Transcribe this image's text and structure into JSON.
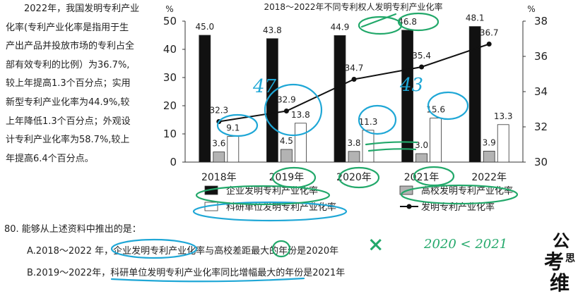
{
  "paragraph": [
    "2022年，我国发明专利产业",
    "化率(专利产业化率是指用于生",
    "产出产品并投放市场的专利占全",
    "部有效专利的比例）为36.7%,",
    "较上年提高1.3个百分点；实用",
    "新型专利产业化率为44.9%,较",
    "上年降低1.3个百分点；外观设",
    "计专利产业化率为58.7%,较上",
    "年提高6.4个百分点。"
  ],
  "question": {
    "stem": "80. 能够从上述资料中推出的是：",
    "options": [
      "A.2018～2022 年，企业发明专利产业化率与高校差距最大的年份是2020年",
      "B.2019～2022年，科研单位发明专利产业化率同比增幅最大的年份是2021年"
    ]
  },
  "annotations": {
    "n47": "47",
    "n43": "43",
    "cross": "×",
    "note": "2020 < 2021"
  },
  "watermark": [
    "公",
    "考",
    "思",
    "维"
  ],
  "colors": {
    "ink": "#22a86a",
    "ink_blue": "#1fa7d6",
    "corp": "#111111",
    "univ": "#b3b3b3",
    "inst": "#ffffff"
  },
  "chart_data": {
    "type": "bar",
    "title": "2018～2022年不同专利权人发明专利产业化率",
    "categories": [
      "2018年",
      "2019年",
      "2020年",
      "2021年",
      "2022年"
    ],
    "left_unit": "%",
    "right_unit": "%",
    "ylim_left": [
      0,
      50
    ],
    "yticks_left": [
      "0",
      "10",
      "20",
      "30",
      "40",
      "50"
    ],
    "ylim_right": [
      30,
      38
    ],
    "yticks_right": [
      "30",
      "32",
      "34",
      "36",
      "38"
    ],
    "series": [
      {
        "name": "企业发明专利产业化率",
        "axis": "left",
        "values": [
          45.0,
          43.8,
          44.9,
          46.8,
          48.1
        ],
        "labels": [
          "45.0",
          "43.8",
          "44.9",
          "46.8",
          "48.1"
        ]
      },
      {
        "name": "高校发明专利产业化率",
        "axis": "left",
        "values": [
          3.6,
          4.5,
          3.8,
          3.0,
          3.9
        ],
        "labels": [
          "3.6",
          "4.5",
          "3.8",
          "3.0",
          "3.9"
        ]
      },
      {
        "name": "科研单位发明专利产业化率",
        "axis": "left",
        "values": [
          9.1,
          13.8,
          11.3,
          15.6,
          13.3
        ],
        "labels": [
          "9.1",
          "13.8",
          "11.3",
          "15.6",
          "13.3"
        ]
      },
      {
        "name": "发明专利产业化率",
        "type": "line",
        "axis": "right",
        "values": [
          32.3,
          32.9,
          34.7,
          35.4,
          36.7
        ],
        "labels": [
          "32.3",
          "32.9",
          "34.7",
          "35.4",
          "36.7"
        ]
      }
    ],
    "legend_position": "bottom"
  }
}
